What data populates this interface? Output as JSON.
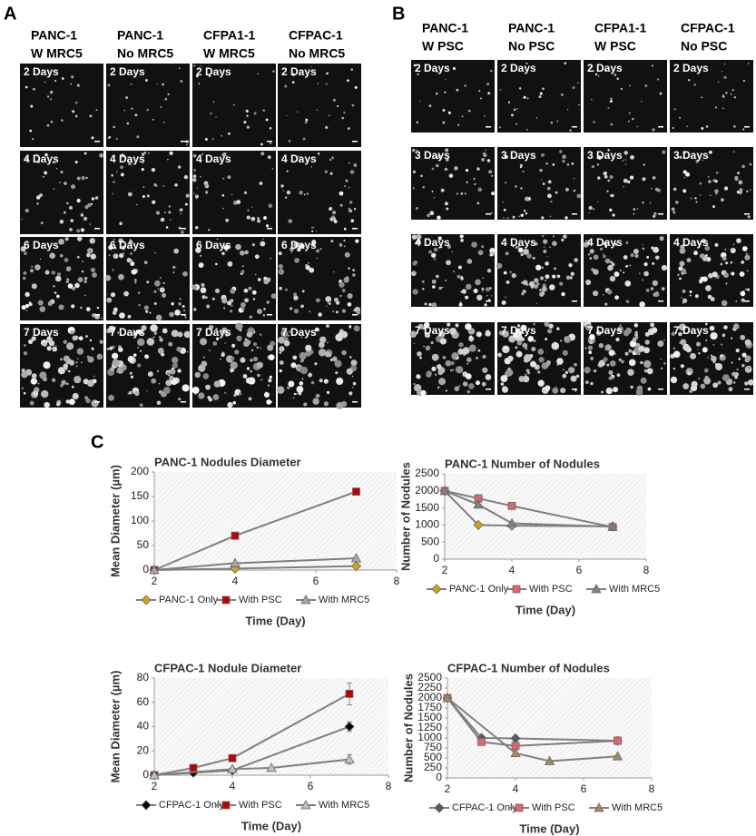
{
  "panel_a": {
    "label": "A",
    "columns": [
      [
        "PANC-1",
        "W MRC5"
      ],
      [
        "PANC-1",
        "No MRC5"
      ],
      [
        "CFPA1-1",
        "W MRC5"
      ],
      [
        "CFPAC-1",
        "No MRC5"
      ]
    ],
    "days": [
      "2 Days",
      "4 Days",
      "6 Days",
      "7 Days"
    ]
  },
  "panel_b": {
    "label": "B",
    "columns": [
      [
        "PANC-1",
        "W PSC"
      ],
      [
        "PANC-1",
        "No PSC"
      ],
      [
        "CFPA1-1",
        "W PSC"
      ],
      [
        "CFPAC-1",
        "No PSC"
      ]
    ],
    "days": [
      "2 Days",
      "3 Days",
      "4 Days",
      "7 Days"
    ]
  },
  "panel_c": {
    "label": "C"
  },
  "chart_data": [
    {
      "type": "line",
      "title": "PANC-1 Nodules Diameter",
      "y_label": "Mean Diameter (µm)",
      "x_label": "Time (Day)",
      "xlim": [
        2,
        8
      ],
      "xticks": [
        2,
        4,
        6,
        8
      ],
      "ylim": [
        0,
        200
      ],
      "yticks": [
        0,
        50,
        100,
        150,
        200
      ],
      "line_color": "#7f7f7f",
      "series": [
        {
          "name": "PANC-1 Only",
          "color": "#d4a017",
          "marker": "diamond",
          "x": [
            2,
            4,
            7
          ],
          "values": [
            0,
            3,
            8
          ]
        },
        {
          "name": "With PSC",
          "color": "#c00000",
          "marker": "square",
          "x": [
            2,
            4,
            7
          ],
          "values": [
            0,
            70,
            160
          ]
        },
        {
          "name": "With MRC5",
          "color": "#a6a6a6",
          "marker": "triangle",
          "x": [
            2,
            4,
            7
          ],
          "values": [
            0,
            14,
            24
          ]
        }
      ]
    },
    {
      "type": "line",
      "title": "PANC-1  Number of Nodules",
      "y_label": "Number of Nodules",
      "x_label": "Time (Day)",
      "xlim": [
        2,
        8
      ],
      "xticks": [
        2,
        4,
        6,
        8
      ],
      "ylim": [
        0,
        2500
      ],
      "yticks": [
        0,
        500,
        1000,
        1500,
        2000,
        2500
      ],
      "line_color": "#7f7f7f",
      "series": [
        {
          "name": "PANC-1 Only",
          "color": "#d4a017",
          "marker": "diamond",
          "x": [
            2,
            3,
            4,
            7
          ],
          "values": [
            2000,
            1000,
            980,
            960
          ]
        },
        {
          "name": "With PSC",
          "color": "#e06666",
          "marker": "square",
          "x": [
            2,
            3,
            4,
            7
          ],
          "values": [
            2000,
            1780,
            1560,
            940
          ]
        },
        {
          "name": "With MRC5",
          "color": "#808080",
          "marker": "triangle",
          "x": [
            2,
            3,
            4,
            7
          ],
          "values": [
            2000,
            1600,
            1050,
            950
          ]
        }
      ]
    },
    {
      "type": "line",
      "title": "CFPAC-1  Nodule Diameter",
      "y_label": "Mean Diameter (µm)",
      "x_label": "Time (Day)",
      "xlim": [
        2,
        8
      ],
      "xticks": [
        2,
        4,
        6,
        8
      ],
      "ylim": [
        0,
        80
      ],
      "yticks": [
        0,
        20,
        40,
        60,
        80
      ],
      "line_color": "#7f7f7f",
      "series": [
        {
          "name": "CFPAC-1 Only",
          "color": "#000000",
          "marker": "diamond",
          "x": [
            2,
            3,
            4,
            7
          ],
          "values": [
            0,
            2,
            4,
            40
          ],
          "errors": [
            null,
            null,
            null,
            4
          ]
        },
        {
          "name": "With PSC",
          "color": "#c00000",
          "marker": "square",
          "x": [
            2,
            3,
            4,
            7
          ],
          "values": [
            0,
            6,
            14,
            67
          ],
          "errors": [
            null,
            null,
            null,
            9
          ]
        },
        {
          "name": "With MRC5",
          "color": "#bfbfbf",
          "marker": "triangle",
          "x": [
            2,
            4,
            5,
            7
          ],
          "values": [
            0,
            5,
            6,
            13
          ],
          "errors": [
            null,
            null,
            null,
            4
          ]
        }
      ]
    },
    {
      "type": "line",
      "title": "CFPAC-1  Number of Nodules",
      "y_label": "Number of Nodules",
      "x_label": "Time (Day)",
      "xlim": [
        2,
        8
      ],
      "xticks": [
        2,
        4,
        6,
        8
      ],
      "ylim": [
        0,
        2500
      ],
      "yticks": [
        0,
        250,
        500,
        750,
        1000,
        1250,
        1500,
        1750,
        2000,
        2250,
        2500
      ],
      "line_color": "#7f7f7f",
      "series": [
        {
          "name": "CFPAC-1 Only",
          "color": "#595959",
          "marker": "diamond",
          "x": [
            2,
            3,
            4,
            7
          ],
          "values": [
            2000,
            1000,
            990,
            930
          ]
        },
        {
          "name": "With PSC",
          "color": "#e06666",
          "marker": "square",
          "x": [
            2,
            3,
            4,
            7
          ],
          "values": [
            2000,
            900,
            800,
            930
          ]
        },
        {
          "name": "With MRC5",
          "color": "#a68a5b",
          "marker": "triangle",
          "x": [
            2,
            4,
            5,
            7
          ],
          "values": [
            2000,
            620,
            420,
            540
          ]
        }
      ]
    }
  ]
}
